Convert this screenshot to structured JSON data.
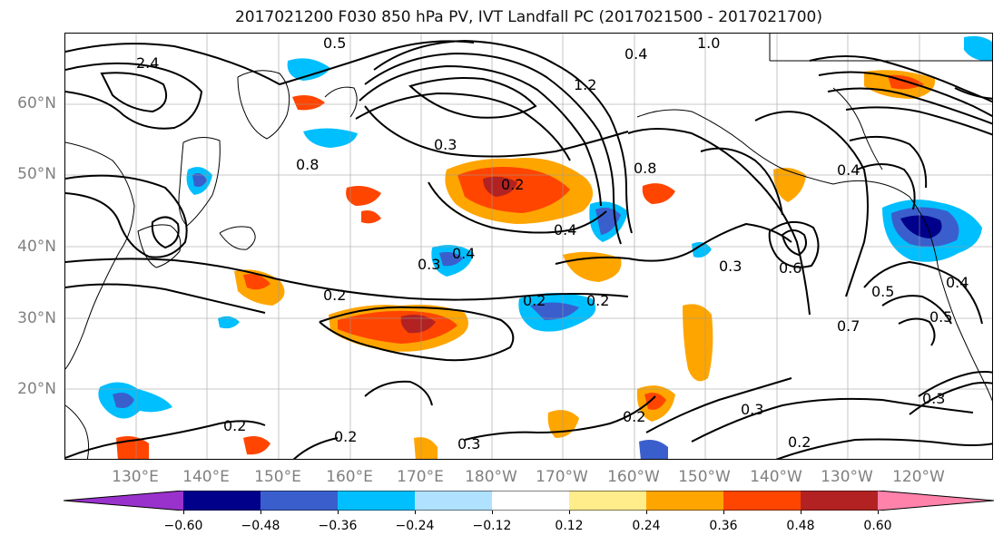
{
  "title": "2017021200 F030 850 hPa PV, IVT Landfall PC (2017021500 - 2017021700)",
  "lat_labels": [
    "60°N",
    "50°N",
    "40°N",
    "30°N",
    "20°N"
  ],
  "lon_labels": [
    "130°E",
    "140°E",
    "150°E",
    "160°E",
    "170°E",
    "180°W",
    "170°W",
    "160°W",
    "150°W",
    "140°W",
    "130°W",
    "120°W"
  ],
  "colorbar": {
    "ticks": [
      "−0.60",
      "−0.48",
      "−0.36",
      "−0.24",
      "−0.12",
      "0.12",
      "0.24",
      "0.36",
      "0.48",
      "0.60"
    ],
    "colors": [
      "#9932cc",
      "#00008b",
      "#3a5fcd",
      "#00bfff",
      "#b0e2ff",
      "#ffffff",
      "#ffec8b",
      "#ffa500",
      "#ff4500",
      "#b22222",
      "#ff82ab"
    ]
  },
  "contour_labels": [
    "2.4",
    "0.5",
    "0.4",
    "1.0",
    "1.2",
    "0.8",
    "0.3",
    "0.2",
    "0.4",
    "0.3",
    "0.2",
    "0.2",
    "0.2",
    "0.4",
    "0.3",
    "0.5",
    "0.5",
    "0.7",
    "0.3",
    "0.2",
    "0.2",
    "0.3",
    "0.2",
    "0.2",
    "0.6",
    "0.4",
    "0.3",
    "0.8",
    "0.4"
  ]
}
